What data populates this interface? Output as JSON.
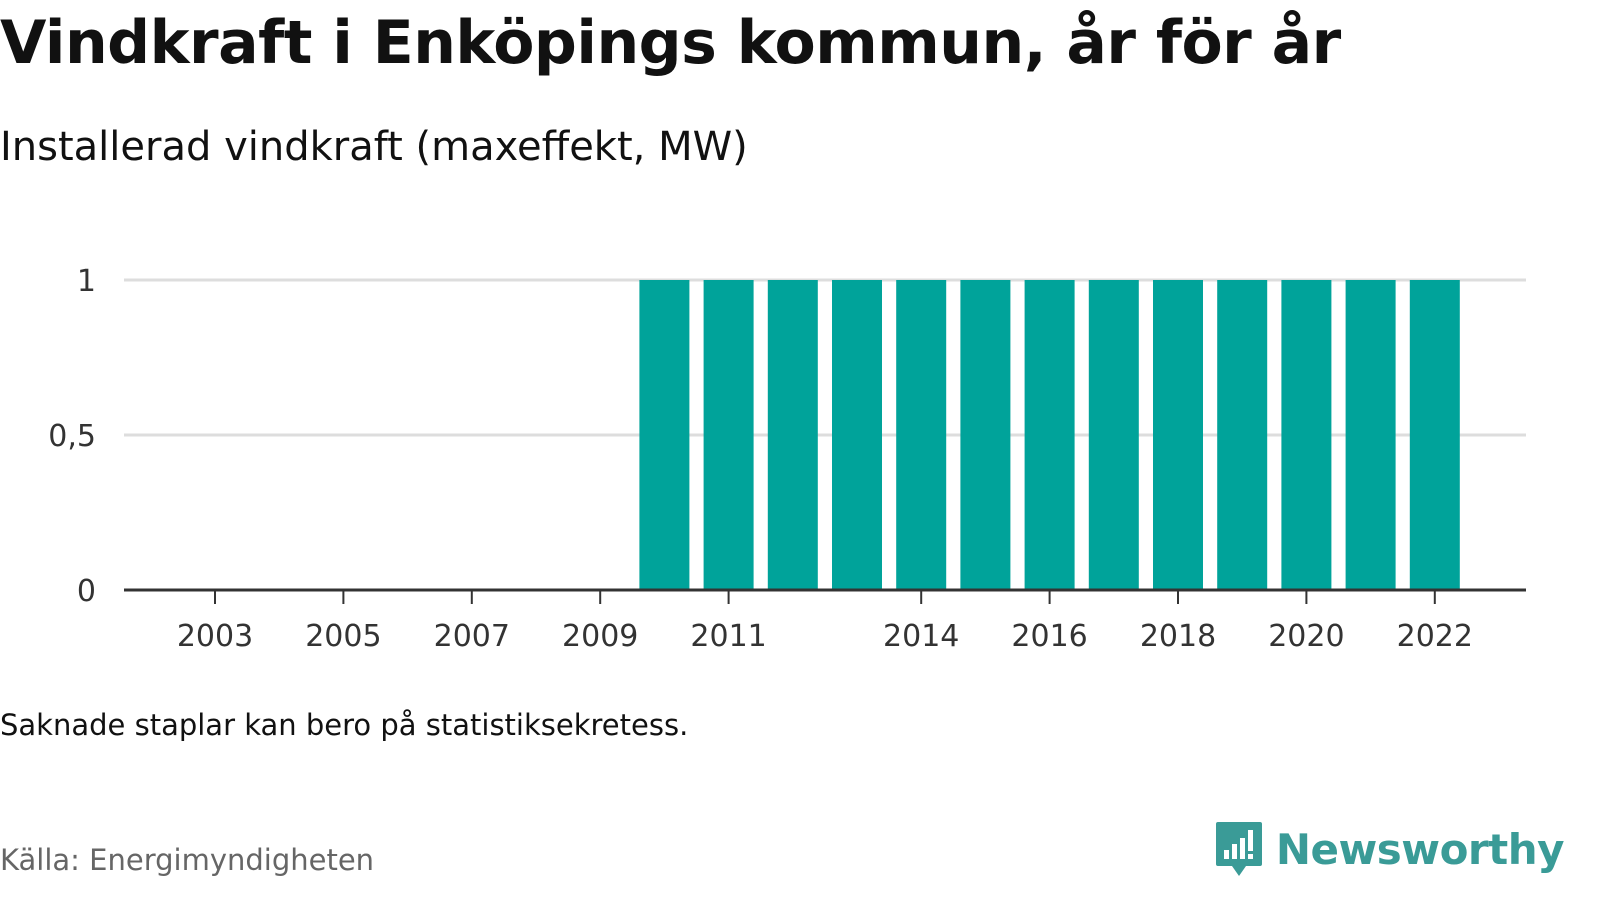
{
  "title": "Vindkraft i Enköpings kommun, år för år",
  "subtitle": "Installerad vindkraft (maxeffekt, MW)",
  "note": "Saknade staplar kan bero på statistiksekretess.",
  "source": "Källa: Energimyndigheten",
  "brand": {
    "name": "Newsworthy",
    "icon": "bar-chart-speech-icon",
    "color": "#3a9b97"
  },
  "colors": {
    "bar": "#00a39a",
    "grid": "#dddddd",
    "axis": "#333333"
  },
  "chart_data": {
    "type": "bar",
    "categories": [
      "2003",
      "2004",
      "2005",
      "2006",
      "2007",
      "2008",
      "2009",
      "2010",
      "2011",
      "2012",
      "2013",
      "2014",
      "2015",
      "2016",
      "2017",
      "2018",
      "2019",
      "2020",
      "2021",
      "2022"
    ],
    "values": [
      null,
      null,
      null,
      null,
      null,
      null,
      null,
      1,
      1,
      1,
      1,
      1,
      1,
      1,
      1,
      1,
      1,
      1,
      1,
      1
    ],
    "x_tick_labels": [
      "2003",
      "2005",
      "2007",
      "2009",
      "2011",
      "2014",
      "2016",
      "2018",
      "2020",
      "2022"
    ],
    "y_ticks": [
      0,
      0.5,
      1
    ],
    "y_tick_labels": [
      "0",
      "0,5",
      "1"
    ],
    "ylim": [
      0,
      1
    ],
    "xlabel": "",
    "ylabel": "",
    "grid": true
  }
}
